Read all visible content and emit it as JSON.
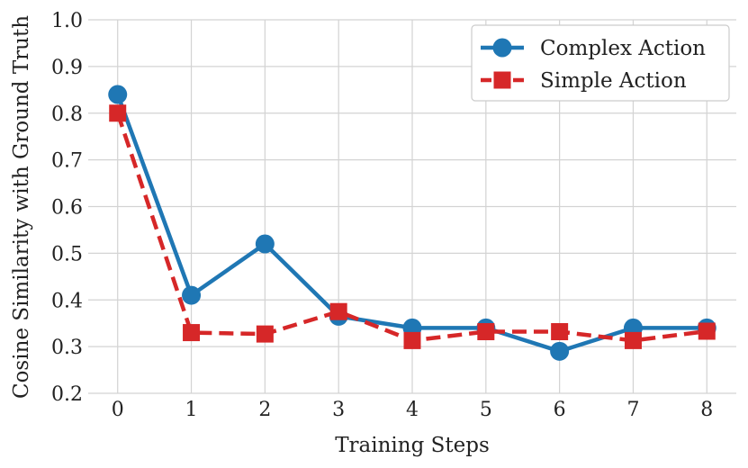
{
  "chart_data": {
    "type": "line",
    "xlabel": "Training Steps",
    "ylabel": "Cosine Similarity with Ground Truth",
    "x": [
      0,
      1,
      2,
      3,
      4,
      5,
      6,
      7,
      8
    ],
    "xticks": [
      "0",
      "1",
      "2",
      "3",
      "4",
      "5",
      "6",
      "7",
      "8"
    ],
    "yticks": [
      "0.2",
      "0.3",
      "0.4",
      "0.5",
      "0.6",
      "0.7",
      "0.8",
      "0.9",
      "1.0"
    ],
    "xlim": [
      -0.4,
      8.4
    ],
    "ylim": [
      0.2,
      1.0
    ],
    "grid": true,
    "legend": "top-right",
    "series": [
      {
        "name": "Complex Action",
        "color": "#1f77b4",
        "marker": "circle",
        "linestyle": "solid",
        "values": [
          0.84,
          0.41,
          0.52,
          0.365,
          0.34,
          0.34,
          0.29,
          0.34,
          0.34
        ]
      },
      {
        "name": "Simple Action",
        "color": "#d62728",
        "marker": "square",
        "linestyle": "dashed",
        "values": [
          0.8,
          0.33,
          0.327,
          0.375,
          0.313,
          0.332,
          0.332,
          0.313,
          0.333
        ]
      }
    ]
  }
}
